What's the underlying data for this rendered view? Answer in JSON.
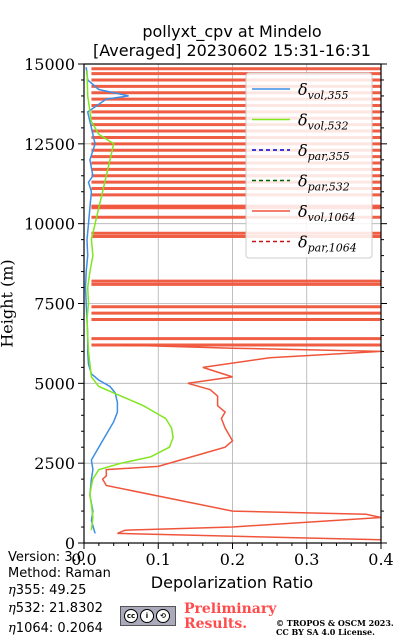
{
  "title_line1": "pollyxt_cpv at Mindelo",
  "title_line2": "[Averaged] 20230602 15:31-16:31",
  "info": {
    "version": "Version: 3.0",
    "method": "Method: Raman",
    "eta355": ":  49.25",
    "eta532": ": 21.8302",
    "eta1064": ": 0.2064"
  },
  "cc_text": "cc",
  "preliminary_line1": "Preliminary",
  "preliminary_line2": "Results.",
  "copyright_line1": "© TROPOS & OSCM 2023.",
  "copyright_line2": "CC BY SA 4.0 License.",
  "colors": {
    "vol355": "#3c8ee6",
    "vol532": "#80e61e",
    "par355": "#0000cc",
    "par532": "#006400",
    "vol1064": "#f0553c",
    "par1064": "#c81414",
    "prelim": "#ff4b4b"
  },
  "chart_data": {
    "type": "line",
    "title": "pollyxt_cpv at Mindelo\n[Averaged] 20230602 15:31-16:31",
    "xlabel": "Depolarization Ratio",
    "ylabel": "Height (m)",
    "xlim": [
      0,
      0.4
    ],
    "ylim": [
      0,
      15000
    ],
    "xticks": [
      0.0,
      0.1,
      0.2,
      0.3,
      0.4
    ],
    "xtick_labels": [
      "0.0",
      "0.1",
      "0.2",
      "0.3",
      "0.4"
    ],
    "yticks": [
      0,
      2500,
      5000,
      7500,
      10000,
      12500,
      15000
    ],
    "ytick_labels": [
      "0",
      "2500",
      "5000",
      "7500",
      "10000",
      "12500",
      "15000"
    ],
    "grid": true,
    "legend_position": "top-right",
    "legend": [
      {
        "main": "δ",
        "sub": "vol,355",
        "style": "solid",
        "color_key": "vol355"
      },
      {
        "main": "δ",
        "sub": "vol,532",
        "style": "solid",
        "color_key": "vol532"
      },
      {
        "main": "δ",
        "sub": "par,355",
        "style": "dashed",
        "color_key": "par355"
      },
      {
        "main": "δ",
        "sub": "par,532",
        "style": "dashed",
        "color_key": "par532"
      },
      {
        "main": "δ",
        "sub": "vol,1064",
        "style": "solid",
        "color_key": "vol1064"
      },
      {
        "main": "δ",
        "sub": "par,1064",
        "style": "dashed",
        "color_key": "par1064"
      }
    ],
    "series": [
      {
        "name": "δvol,355",
        "color_key": "vol355",
        "x": [
          0.015,
          0.01,
          0.012,
          0.008,
          0.01,
          0.012,
          0.01,
          0.02,
          0.03,
          0.04,
          0.045,
          0.045,
          0.042,
          0.035,
          0.02,
          0.01,
          0.006,
          0.005,
          0.005,
          0.004,
          0.003,
          0.002,
          0.003,
          0.005,
          0.004,
          0.006,
          0.008,
          0.01,
          0.006,
          0.012,
          0.008,
          0.015,
          0.01,
          0.005,
          0.03,
          0.06,
          0.02,
          0.005,
          0.003
        ],
        "y": [
          300,
          700,
          1000,
          1500,
          2000,
          2300,
          2600,
          3000,
          3400,
          3800,
          4100,
          4400,
          4700,
          4900,
          5100,
          5300,
          5600,
          6000,
          6500,
          7000,
          7500,
          8000,
          8500,
          9000,
          9500,
          10000,
          10500,
          11000,
          11300,
          11500,
          12000,
          12500,
          13000,
          13500,
          13900,
          14000,
          14200,
          14500,
          14900
        ]
      },
      {
        "name": "δvol,532",
        "color_key": "vol532",
        "x": [
          0.01,
          0.012,
          0.01,
          0.008,
          0.01,
          0.012,
          0.02,
          0.05,
          0.09,
          0.115,
          0.12,
          0.118,
          0.11,
          0.095,
          0.08,
          0.06,
          0.04,
          0.02,
          0.01,
          0.008,
          0.006,
          0.005,
          0.004,
          0.006,
          0.005,
          0.008,
          0.012,
          0.01,
          0.015,
          0.02,
          0.025,
          0.04,
          0.02,
          0.01,
          0.005,
          0.004
        ],
        "y": [
          400,
          800,
          1200,
          1500,
          1800,
          2000,
          2300,
          2500,
          2700,
          3000,
          3300,
          3600,
          3900,
          4100,
          4300,
          4500,
          4700,
          4900,
          5200,
          5600,
          6000,
          6500,
          7000,
          7500,
          8000,
          8500,
          9000,
          9500,
          10000,
          10500,
          11000,
          12500,
          12800,
          13200,
          14000,
          14800
        ]
      },
      {
        "name": "δvol,1064",
        "color_key": "vol1064",
        "x": [
          0.4,
          0.045,
          0.055,
          0.2,
          0.4,
          0.38,
          0.2,
          0.03,
          0.025,
          0.03,
          0.03,
          0.1,
          0.13,
          0.16,
          0.19,
          0.2,
          0.195,
          0.19,
          0.185,
          0.19,
          0.18,
          0.18,
          0.17,
          0.14,
          0.2,
          0.16,
          0.25,
          0.4,
          0.2,
          0.05
        ],
        "y": [
          100,
          300,
          400,
          500,
          800,
          900,
          1000,
          1800,
          2000,
          2100,
          2300,
          2400,
          2600,
          2800,
          3000,
          3200,
          3400,
          3600,
          3900,
          4100,
          4300,
          4600,
          4800,
          5000,
          5200,
          5500,
          5800,
          6000,
          6100,
          6200
        ]
      }
    ],
    "spikes_1064": {
      "x_end": 0.4,
      "heights": [
        6200,
        6400,
        7000,
        7200,
        7400,
        8100,
        8200,
        9600,
        9700,
        10200,
        10500,
        10550,
        10900,
        11100,
        11300,
        11500,
        11700,
        11900,
        12100,
        12300,
        12500,
        12700,
        12900,
        13100,
        13300,
        13500,
        13700,
        13900,
        14100,
        14300,
        14500,
        14700,
        14850
      ]
    }
  }
}
